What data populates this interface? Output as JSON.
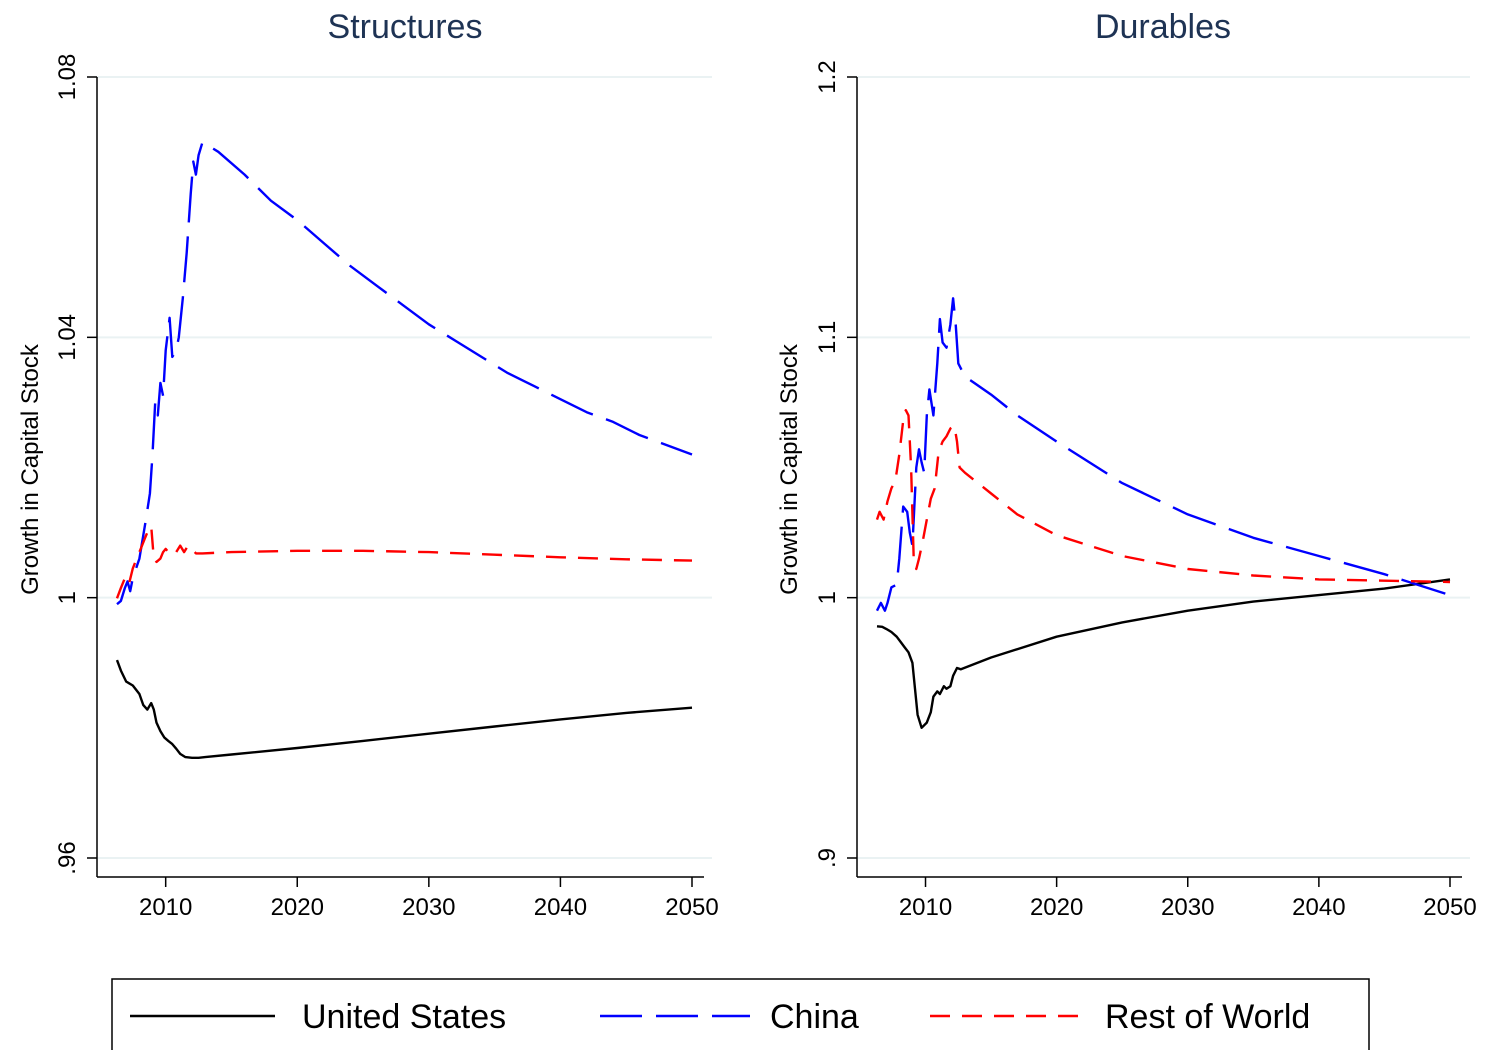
{
  "chart_data": [
    {
      "type": "line",
      "title": "Structures",
      "ylabel": "Growth in Capital Stock",
      "xlabel": "",
      "xlim": [
        2006.3,
        2050
      ],
      "ylim": [
        0.96,
        1.08
      ],
      "x_ticks": [
        2010,
        2020,
        2030,
        2040,
        2050
      ],
      "x_tick_labels": [
        "2010",
        "2020",
        "2030",
        "2040",
        "2050"
      ],
      "y_ticks": [
        0.96,
        1.0,
        1.04,
        1.08
      ],
      "y_tick_labels": [
        ".96",
        "1",
        "1.04",
        "1.08"
      ],
      "grid": true,
      "series": [
        {
          "name": "United States",
          "color": "#000000",
          "dash": "solid",
          "points": [
            [
              2006.3,
              0.9904
            ],
            [
              2006.6,
              0.9888
            ],
            [
              2007,
              0.9871
            ],
            [
              2007.5,
              0.9865
            ],
            [
              2008,
              0.9852
            ],
            [
              2008.3,
              0.9835
            ],
            [
              2008.6,
              0.9828
            ],
            [
              2008.9,
              0.9838
            ],
            [
              2009.1,
              0.9828
            ],
            [
              2009.3,
              0.9808
            ],
            [
              2009.6,
              0.9795
            ],
            [
              2009.9,
              0.9785
            ],
            [
              2010.2,
              0.978
            ],
            [
              2010.5,
              0.9775
            ],
            [
              2010.8,
              0.9768
            ],
            [
              2011.1,
              0.976
            ],
            [
              2011.5,
              0.9755
            ],
            [
              2012,
              0.9754
            ],
            [
              2012.5,
              0.9754
            ],
            [
              2013,
              0.9755
            ],
            [
              2015,
              0.9759
            ],
            [
              2020,
              0.9769
            ],
            [
              2025,
              0.978
            ],
            [
              2030,
              0.9791
            ],
            [
              2035,
              0.9802
            ],
            [
              2040,
              0.9813
            ],
            [
              2045,
              0.9823
            ],
            [
              2050,
              0.9831
            ]
          ]
        },
        {
          "name": "China",
          "color": "#0000ff",
          "dash": "long",
          "points": [
            [
              2006.3,
              0.999
            ],
            [
              2006.6,
              0.9995
            ],
            [
              2006.9,
              1.0015
            ],
            [
              2007.1,
              1.0025
            ],
            [
              2007.3,
              1.001
            ],
            [
              2007.5,
              1.003
            ],
            [
              2008,
              1.006
            ],
            [
              2008.5,
              1.012
            ],
            [
              2008.8,
              1.016
            ],
            [
              2009,
              1.022
            ],
            [
              2009.2,
              1.03
            ],
            [
              2009.4,
              1.028
            ],
            [
              2009.6,
              1.033
            ],
            [
              2009.8,
              1.031
            ],
            [
              2010,
              1.038
            ],
            [
              2010.3,
              1.043
            ],
            [
              2010.5,
              1.037
            ],
            [
              2010.8,
              1.038
            ],
            [
              2011,
              1.04
            ],
            [
              2011.3,
              1.046
            ],
            [
              2011.6,
              1.053
            ],
            [
              2011.9,
              1.062
            ],
            [
              2012.1,
              1.067
            ],
            [
              2012.3,
              1.065
            ],
            [
              2012.5,
              1.068
            ],
            [
              2012.8,
              1.07
            ],
            [
              2014,
              1.0685
            ],
            [
              2016,
              1.065
            ],
            [
              2018,
              1.061
            ],
            [
              2020,
              1.058
            ],
            [
              2022,
              1.0545
            ],
            [
              2024,
              1.051
            ],
            [
              2026,
              1.048
            ],
            [
              2028,
              1.045
            ],
            [
              2030,
              1.042
            ],
            [
              2032,
              1.0395
            ],
            [
              2034,
              1.037
            ],
            [
              2036,
              1.0345
            ],
            [
              2038,
              1.0325
            ],
            [
              2040,
              1.0305
            ],
            [
              2042,
              1.0285
            ],
            [
              2044,
              1.027
            ],
            [
              2046,
              1.025
            ],
            [
              2048,
              1.0235
            ],
            [
              2050,
              1.022
            ]
          ]
        },
        {
          "name": "Rest of World",
          "color": "#ff0000",
          "dash": "short",
          "points": [
            [
              2006.3,
              0.9999
            ],
            [
              2006.6,
              1.0015
            ],
            [
              2006.9,
              1.003
            ],
            [
              2007.2,
              1.002
            ],
            [
              2007.5,
              1.0045
            ],
            [
              2007.8,
              1.006
            ],
            [
              2008.1,
              1.0075
            ],
            [
              2008.4,
              1.009
            ],
            [
              2008.7,
              1.0105
            ],
            [
              2008.9,
              1.011
            ],
            [
              2009.1,
              1.006
            ],
            [
              2009.3,
              1.0055
            ],
            [
              2009.6,
              1.006
            ],
            [
              2009.8,
              1.007
            ],
            [
              2010,
              1.0075
            ],
            [
              2010.2,
              1.007
            ],
            [
              2010.5,
              1.0075
            ],
            [
              2010.8,
              1.007
            ],
            [
              2011.1,
              1.008
            ],
            [
              2011.4,
              1.007
            ],
            [
              2011.7,
              1.008
            ],
            [
              2012,
              1.0075
            ],
            [
              2012.3,
              1.0068
            ],
            [
              2012.8,
              1.0068
            ],
            [
              2015,
              1.007
            ],
            [
              2020,
              1.0072
            ],
            [
              2025,
              1.0072
            ],
            [
              2030,
              1.007
            ],
            [
              2035,
              1.0066
            ],
            [
              2040,
              1.0062
            ],
            [
              2045,
              1.0059
            ],
            [
              2050,
              1.0057
            ]
          ]
        }
      ]
    },
    {
      "type": "line",
      "title": "Durables",
      "ylabel": "Growth in Capital Stock",
      "xlabel": "",
      "xlim": [
        2006.3,
        2050
      ],
      "ylim": [
        0.9,
        1.2
      ],
      "x_ticks": [
        2010,
        2020,
        2030,
        2040,
        2050
      ],
      "x_tick_labels": [
        "2010",
        "2020",
        "2030",
        "2040",
        "2050"
      ],
      "y_ticks": [
        0.9,
        1.0,
        1.1,
        1.2
      ],
      "y_tick_labels": [
        ".9",
        "1",
        "1.1",
        "1.2"
      ],
      "grid": true,
      "series": [
        {
          "name": "United States",
          "color": "#000000",
          "dash": "solid",
          "points": [
            [
              2006.3,
              0.989
            ],
            [
              2006.7,
              0.9888
            ],
            [
              2007,
              0.988
            ],
            [
              2007.4,
              0.9868
            ],
            [
              2007.8,
              0.985
            ],
            [
              2008.1,
              0.983
            ],
            [
              2008.4,
              0.981
            ],
            [
              2008.7,
              0.979
            ],
            [
              2009,
              0.975
            ],
            [
              2009.2,
              0.965
            ],
            [
              2009.4,
              0.955
            ],
            [
              2009.7,
              0.95
            ],
            [
              2010.1,
              0.952
            ],
            [
              2010.4,
              0.956
            ],
            [
              2010.6,
              0.962
            ],
            [
              2010.9,
              0.964
            ],
            [
              2011.1,
              0.963
            ],
            [
              2011.4,
              0.966
            ],
            [
              2011.6,
              0.965
            ],
            [
              2011.9,
              0.966
            ],
            [
              2012.1,
              0.97
            ],
            [
              2012.4,
              0.973
            ],
            [
              2012.7,
              0.9725
            ],
            [
              2015,
              0.977
            ],
            [
              2020,
              0.985
            ],
            [
              2025,
              0.9905
            ],
            [
              2030,
              0.995
            ],
            [
              2035,
              0.9985
            ],
            [
              2040,
              1.001
            ],
            [
              2045,
              1.0035
            ],
            [
              2050,
              1.007
            ]
          ]
        },
        {
          "name": "China",
          "color": "#0000ff",
          "dash": "long",
          "points": [
            [
              2006.3,
              0.995
            ],
            [
              2006.6,
              0.998
            ],
            [
              2006.9,
              0.995
            ],
            [
              2007.1,
              0.998
            ],
            [
              2007.4,
              1.004
            ],
            [
              2007.8,
              1.005
            ],
            [
              2008,
              1.015
            ],
            [
              2008.3,
              1.035
            ],
            [
              2008.6,
              1.033
            ],
            [
              2008.8,
              1.025
            ],
            [
              2009,
              1.02
            ],
            [
              2009.3,
              1.05
            ],
            [
              2009.5,
              1.057
            ],
            [
              2009.7,
              1.052
            ],
            [
              2009.9,
              1.048
            ],
            [
              2010.1,
              1.07
            ],
            [
              2010.3,
              1.08
            ],
            [
              2010.6,
              1.07
            ],
            [
              2010.9,
              1.09
            ],
            [
              2011.1,
              1.107
            ],
            [
              2011.3,
              1.098
            ],
            [
              2011.6,
              1.096
            ],
            [
              2011.9,
              1.105
            ],
            [
              2012.1,
              1.115
            ],
            [
              2012.3,
              1.105
            ],
            [
              2012.5,
              1.09
            ],
            [
              2013,
              1.085
            ],
            [
              2015,
              1.078
            ],
            [
              2017,
              1.07
            ],
            [
              2020,
              1.06
            ],
            [
              2025,
              1.044
            ],
            [
              2030,
              1.032
            ],
            [
              2035,
              1.023
            ],
            [
              2040,
              1.016
            ],
            [
              2045,
              1.009
            ],
            [
              2050,
              1.001
            ]
          ]
        },
        {
          "name": "Rest of World",
          "color": "#ff0000",
          "dash": "short",
          "points": [
            [
              2006.3,
              1.03
            ],
            [
              2006.5,
              1.033
            ],
            [
              2006.8,
              1.03
            ],
            [
              2007.1,
              1.037
            ],
            [
              2007.4,
              1.042
            ],
            [
              2007.7,
              1.045
            ],
            [
              2008,
              1.055
            ],
            [
              2008.3,
              1.068
            ],
            [
              2008.5,
              1.072
            ],
            [
              2008.7,
              1.07
            ],
            [
              2008.9,
              1.05
            ],
            [
              2009.1,
              1.015
            ],
            [
              2009.3,
              1.011
            ],
            [
              2009.5,
              1.015
            ],
            [
              2009.8,
              1.022
            ],
            [
              2010.1,
              1.03
            ],
            [
              2010.4,
              1.038
            ],
            [
              2010.7,
              1.042
            ],
            [
              2011,
              1.056
            ],
            [
              2011.3,
              1.06
            ],
            [
              2011.6,
              1.062
            ],
            [
              2011.9,
              1.065
            ],
            [
              2012.2,
              1.066
            ],
            [
              2012.4,
              1.06
            ],
            [
              2012.6,
              1.05
            ],
            [
              2013,
              1.048
            ],
            [
              2015,
              1.04
            ],
            [
              2017,
              1.032
            ],
            [
              2020,
              1.024
            ],
            [
              2025,
              1.016
            ],
            [
              2030,
              1.011
            ],
            [
              2035,
              1.0085
            ],
            [
              2040,
              1.007
            ],
            [
              2045,
              1.0065
            ],
            [
              2050,
              1.006
            ]
          ]
        }
      ]
    }
  ],
  "legend": {
    "entries": [
      {
        "label": "United States",
        "color": "#000000",
        "dash": "solid"
      },
      {
        "label": "China",
        "color": "#0000ff",
        "dash": "long"
      },
      {
        "label": "Rest of World",
        "color": "#ff0000",
        "dash": "short"
      }
    ],
    "placement": "bottom"
  },
  "colors": {
    "title": "#1e3354",
    "grid": "#eaf2f3",
    "axis": "#000000"
  }
}
